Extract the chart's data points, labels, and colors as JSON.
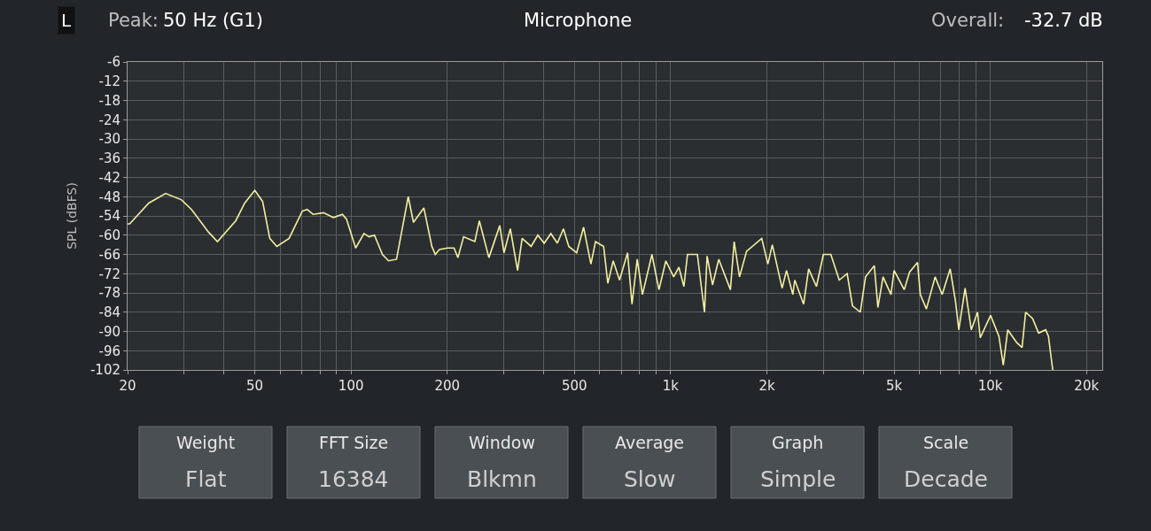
{
  "chart_data": {
    "type": "line",
    "title": "Microphone",
    "ylabel": "SPL (dBFS)",
    "annotations": [
      "L",
      "Peak:",
      "50 Hz (G1)",
      "Overall:",
      "-32.7 dB",
      "Weight",
      "Flat",
      "FFT Size",
      "16384",
      "Window",
      "Blkmn",
      "Average",
      "Slow",
      "Graph",
      "Simple",
      "Scale",
      "Decade"
    ],
    "log": "x",
    "grid": true,
    "marker": "none",
    "line_style": "solid",
    "xlim": [
      20,
      22400
    ],
    "ylim": [
      -102,
      -6
    ],
    "xticks": [
      20,
      {
        "value": 30,
        "label": null
      },
      {
        "value": 40,
        "label": null
      },
      50,
      {
        "value": 60,
        "label": null
      },
      {
        "value": 70,
        "label": null
      },
      {
        "value": 80,
        "label": null
      },
      {
        "value": 90,
        "label": null
      },
      100,
      200,
      {
        "value": 300,
        "label": null
      },
      {
        "value": 400,
        "label": null
      },
      500,
      {
        "value": 600,
        "label": null
      },
      {
        "value": 700,
        "label": null
      },
      {
        "value": 800,
        "label": null
      },
      {
        "value": 900,
        "label": null
      },
      {
        "value": 1000,
        "label": "1k"
      },
      {
        "value": 2000,
        "label": "2k"
      },
      {
        "value": 3000,
        "label": null
      },
      {
        "value": 4000,
        "label": null
      },
      {
        "value": 5000,
        "label": "5k"
      },
      {
        "value": 6000,
        "label": null
      },
      {
        "value": 7000,
        "label": null
      },
      {
        "value": 8000,
        "label": null
      },
      {
        "value": 9000,
        "label": null
      },
      {
        "value": 10000,
        "label": "10k"
      },
      {
        "value": 20000,
        "label": "20k"
      }
    ],
    "yticks": [
      -6,
      -12,
      -18,
      -24,
      -30,
      -36,
      -42,
      -48,
      -54,
      -60,
      -66,
      -72,
      -78,
      -84,
      -90,
      -96,
      -102
    ],
    "x": [
      20,
      20.3,
      23.3,
      26.3,
      29.5,
      31.7,
      35.8,
      38.2,
      43.6,
      46.5,
      50,
      52.9,
      55.7,
      58.6,
      64,
      70.4,
      72.9,
      76.1,
      82,
      88,
      94,
      96.8,
      103.4,
      109.8,
      113.9,
      118.4,
      125.4,
      131,
      138.8,
      151,
      156.8,
      169,
      179,
      183.5,
      189,
      200,
      210,
      216,
      225,
      244,
      252,
      270,
      292,
      301,
      315,
      332,
      343,
      366,
      384,
      402,
      422,
      442,
      462,
      480,
      508,
      534,
      563,
      582,
      617,
      636,
      661,
      692,
      733,
      757,
      786,
      816,
      874,
      919,
      966,
      1022,
      1061,
      1100,
      1129,
      1212,
      1276,
      1300,
      1352,
      1414,
      1538,
      1580,
      1642,
      1728,
      1927,
      2014,
      2080,
      2232,
      2304,
      2411,
      2445,
      2606,
      2702,
      2858,
      3004,
      3170,
      3368,
      3566,
      3704,
      3920,
      4070,
      4336,
      4450,
      4618,
      4890,
      5000,
      5380,
      5590,
      5920,
      6040,
      6310,
      6720,
      7070,
      7490,
      7780,
      7970,
      8340,
      8720,
      9120,
      9300,
      10020,
      10640,
      10980,
      11340,
      12100,
      12570,
      12900,
      13560,
      14160,
      14900,
      15200,
      15680
    ],
    "series": [
      {
        "color": "#f2f0a0",
        "values": [
          -56.5,
          -56.5,
          -50,
          -47,
          -49,
          -52,
          -59,
          -62,
          -55.5,
          -50,
          -46,
          -49.5,
          -61,
          -63.5,
          -61,
          -52.5,
          -52,
          -53.5,
          -53,
          -54.5,
          -53.5,
          -55,
          -64,
          -59.5,
          -60.5,
          -60,
          -66,
          -68,
          -67.5,
          -48,
          -56,
          -51.5,
          -63.5,
          -66,
          -64.5,
          -64,
          -64,
          -67,
          -60.5,
          -62,
          -55.5,
          -67,
          -57,
          -65.5,
          -58,
          -71,
          -61,
          -63.5,
          -60,
          -62.5,
          -59.5,
          -62.5,
          -58,
          -63.5,
          -65.5,
          -57.5,
          -69,
          -62,
          -63.5,
          -75,
          -68,
          -74,
          -65.5,
          -81.5,
          -67.5,
          -78.5,
          -66,
          -77,
          -68,
          -73,
          -70,
          -76,
          -66,
          -66,
          -84,
          -66.5,
          -75.5,
          -67.5,
          -77,
          -62,
          -73,
          -65,
          -61,
          -69,
          -63,
          -76.5,
          -71,
          -78.5,
          -74,
          -81.5,
          -70.5,
          -76,
          -66,
          -66,
          -74,
          -72,
          -82,
          -84,
          -73,
          -69.5,
          -82.5,
          -73,
          -78.5,
          -71,
          -77,
          -71.5,
          -68.5,
          -78.5,
          -83,
          -73,
          -78.5,
          -70.5,
          -80.5,
          -89.5,
          -76.5,
          -89.5,
          -84,
          -92,
          -85,
          -91.5,
          -100.5,
          -89.5,
          -93.5,
          -95,
          -84,
          -86,
          -90.5,
          -89.5,
          -91.5,
          -102
        ]
      }
    ]
  }
}
